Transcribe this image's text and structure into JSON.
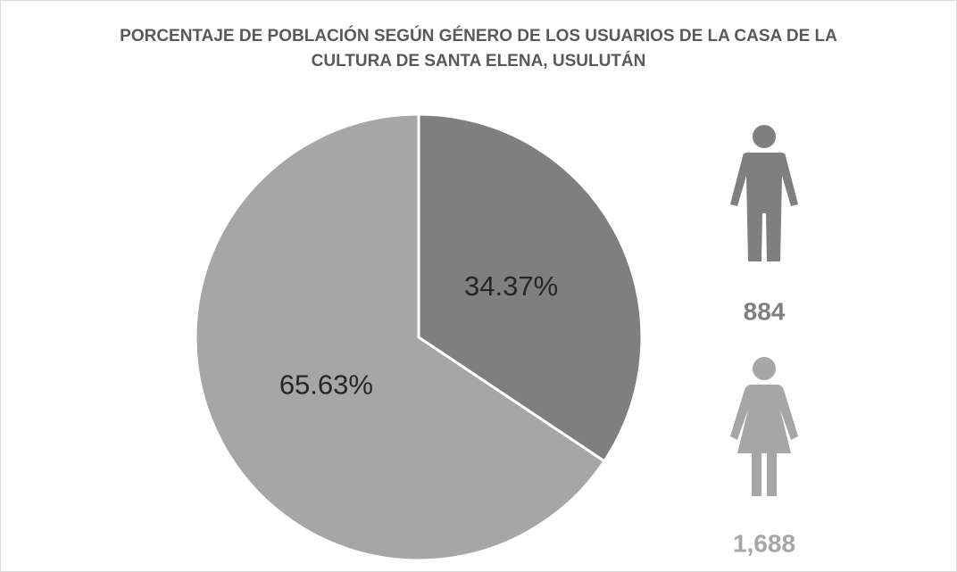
{
  "chart_data": {
    "type": "pie",
    "title": "PORCENTAJE DE POBLACIÓN SEGÚN GÉNERO DE LOS USUARIOS DE LA CASA DE LA CULTURA DE SANTA ELENA, USULUTÁN",
    "values": [
      34.37,
      65.63
    ],
    "value_labels": [
      "34.37%",
      "65.63%"
    ],
    "colors": [
      "#7f7f7f",
      "#a6a6a6"
    ],
    "counts": [
      884,
      1688
    ],
    "count_labels": [
      "884",
      "1,688"
    ]
  }
}
